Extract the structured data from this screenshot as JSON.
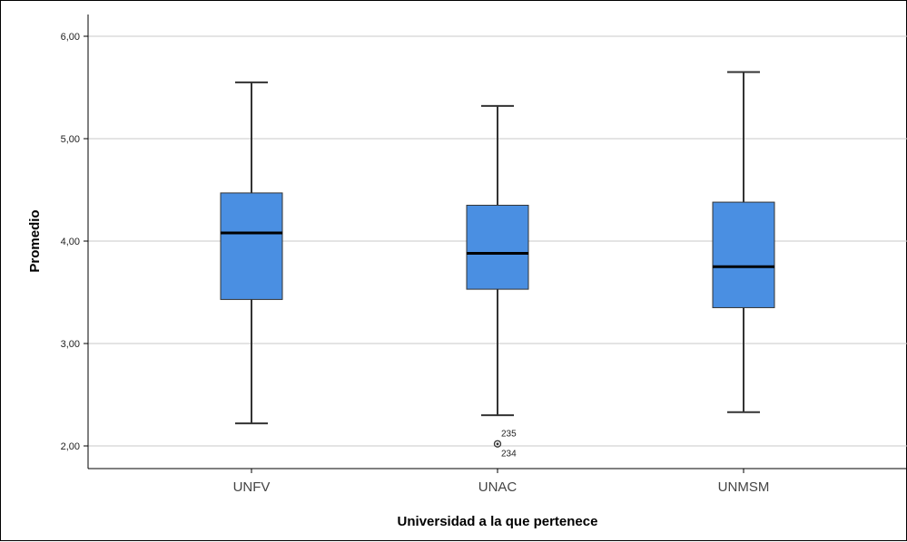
{
  "chart_data": {
    "type": "boxplot",
    "xlabel": "Universidad a la que pertenece",
    "ylabel": "Promedio",
    "ylim": [
      1.8,
      6.2
    ],
    "yticks": [
      2.0,
      3.0,
      4.0,
      5.0,
      6.0
    ],
    "ytick_labels": [
      "2,00",
      "3,00",
      "4,00",
      "5,00",
      "6,00"
    ],
    "grid": "horizontal",
    "box_color": "#4a8fe2",
    "categories": [
      "UNFV",
      "UNAC",
      "UNMSM"
    ],
    "boxes": [
      {
        "category": "UNFV",
        "min": 2.22,
        "q1": 3.43,
        "median": 4.08,
        "q3": 4.47,
        "max": 5.55,
        "outliers": []
      },
      {
        "category": "UNAC",
        "min": 2.3,
        "q1": 3.53,
        "median": 3.88,
        "q3": 4.35,
        "max": 5.32,
        "outliers": [
          {
            "value": 2.02,
            "labels": [
              "235",
              "234"
            ]
          }
        ]
      },
      {
        "category": "UNMSM",
        "min": 2.33,
        "q1": 3.35,
        "median": 3.75,
        "q3": 4.38,
        "max": 5.65,
        "outliers": []
      }
    ]
  }
}
